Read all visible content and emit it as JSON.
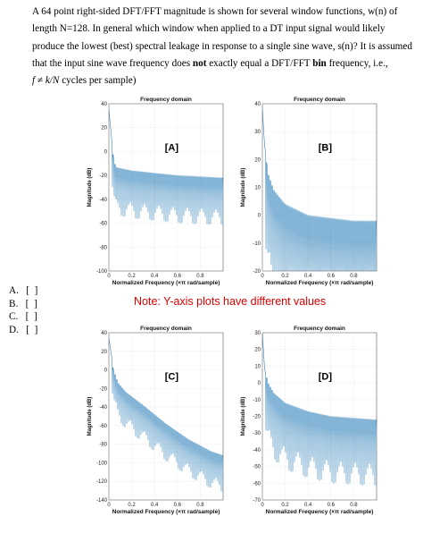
{
  "question": {
    "line1": "A 64 point right-sided DFT/FFT magnitude is shown for several window functions, w(n) of",
    "line2": "length N=128.  In general which window when applied to a DT input signal would likely",
    "line3": "produce the lowest (best) spectral leakage in response to a single sine wave, s(n)?   It is assumed",
    "line4a": "that the input sine wave frequency does ",
    "line4b": "not",
    "line4c": " exactly equal a DFT/FFT ",
    "line4d": "bin",
    "line4e": " frequency, i.e.,",
    "formula": "f ≠ k/N",
    "line5": " cycles per sample)"
  },
  "options": [
    {
      "label": "A.",
      "box": "[  ]"
    },
    {
      "label": "B.",
      "box": "[  ]"
    },
    {
      "label": "C.",
      "box": "[  ]"
    },
    {
      "label": "D.",
      "box": "[  ]"
    }
  ],
  "note": "Note:  Y-axis plots have different values",
  "colors": {
    "line": "#1f77b4",
    "note": "#e00000"
  },
  "chart_data": [
    {
      "id": "A",
      "type": "line",
      "title": "Frequency domain",
      "label": "[A]",
      "xlabel": "Normalized Frequency  (×π rad/sample)",
      "ylabel": "Magnitude (dB)",
      "xlim": [
        0,
        1
      ],
      "ylim": [
        -100,
        40
      ],
      "yticks": [
        40,
        20,
        0,
        -20,
        -40,
        -60,
        -80,
        -100
      ],
      "xticks": [
        0,
        0.2,
        0.4,
        0.6,
        0.8
      ],
      "series": [
        {
          "x": [
            0,
            0.02,
            0.04,
            0.06,
            0.1,
            0.2,
            0.4,
            0.6,
            0.8,
            1.0
          ],
          "y": [
            35,
            15,
            -5,
            -13,
            -14,
            -16,
            -18,
            -20,
            -21,
            -22
          ]
        }
      ]
    },
    {
      "id": "B",
      "type": "line",
      "title": "Frequency domain",
      "label": "[B]",
      "xlabel": "Normalized Frequency  (×π rad/sample)",
      "ylabel": "Magnitude (dB)",
      "xlim": [
        0,
        1
      ],
      "ylim": [
        -20,
        40
      ],
      "yticks": [
        40,
        30,
        20,
        10,
        0,
        -10,
        -20
      ],
      "xticks": [
        0,
        0.2,
        0.4,
        0.6,
        0.8
      ],
      "series": [
        {
          "x": [
            0,
            0.02,
            0.05,
            0.1,
            0.2,
            0.4,
            0.6,
            0.8,
            1.0
          ],
          "y": [
            38,
            25,
            15,
            9,
            4,
            0,
            -1,
            -2,
            -2
          ]
        }
      ]
    },
    {
      "id": "C",
      "type": "line",
      "title": "Frequency domain",
      "label": "[C]",
      "xlabel": "Normalized Frequency  (×π rad/sample)",
      "ylabel": "Magnitude (dB)",
      "xlim": [
        0,
        1
      ],
      "ylim": [
        -140,
        40
      ],
      "yticks": [
        40,
        20,
        0,
        -20,
        -40,
        -60,
        -80,
        -100,
        -120,
        -140
      ],
      "xticks": [
        0,
        0.2,
        0.4,
        0.6,
        0.8
      ],
      "series": [
        {
          "x": [
            0,
            0.02,
            0.04,
            0.08,
            0.15,
            0.3,
            0.5,
            0.7,
            0.9,
            1.0
          ],
          "y": [
            34,
            18,
            0,
            -14,
            -24,
            -38,
            -58,
            -75,
            -88,
            -92
          ]
        }
      ]
    },
    {
      "id": "D",
      "type": "line",
      "title": "Frequency domain",
      "label": "[D]",
      "xlabel": "Normalized Frequency  (×π rad/sample)",
      "ylabel": "Magnitude (dB)",
      "xlim": [
        0,
        1
      ],
      "ylim": [
        -70,
        30
      ],
      "yticks": [
        30,
        20,
        10,
        0,
        -10,
        -20,
        -30,
        -40,
        -50,
        -60,
        -70
      ],
      "xticks": [
        0,
        0.2,
        0.4,
        0.6,
        0.8
      ],
      "series": [
        {
          "x": [
            0,
            0.02,
            0.05,
            0.1,
            0.2,
            0.4,
            0.6,
            0.8,
            1.0
          ],
          "y": [
            30,
            8,
            0,
            -6,
            -12,
            -17,
            -20,
            -21,
            -22
          ]
        }
      ]
    }
  ]
}
